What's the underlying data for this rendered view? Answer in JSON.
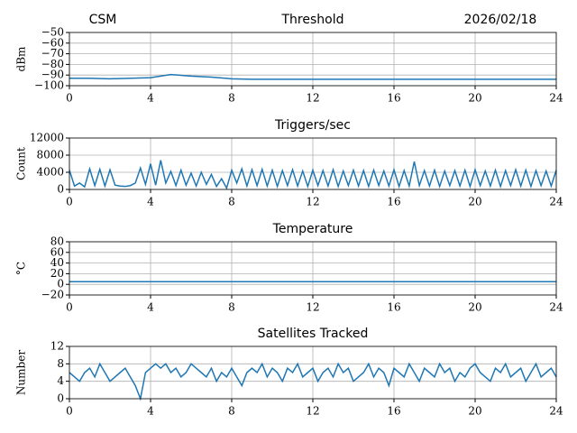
{
  "chart_data": [
    {
      "type": "line",
      "title": "Threshold",
      "left_note": "CSM",
      "right_note": "2026/02/18",
      "ylabel": "dBm",
      "color": "#1f77b4",
      "grid": true,
      "x": [
        0,
        1,
        2,
        3,
        4,
        5,
        6,
        7,
        8,
        9,
        10,
        11,
        12,
        13,
        14,
        15,
        16,
        17,
        18,
        19,
        20,
        21,
        22,
        23,
        24
      ],
      "values": [
        -93,
        -93,
        -93.5,
        -93,
        -92.5,
        -89.5,
        -91,
        -92,
        -93.5,
        -94,
        -94,
        -94,
        -94,
        -94,
        -94,
        -94,
        -94,
        -94,
        -94,
        -94,
        -94,
        -94,
        -94,
        -94,
        -94
      ],
      "xlim": [
        0,
        24
      ],
      "xticks": [
        0,
        4,
        8,
        12,
        16,
        20,
        24
      ],
      "ylim": [
        -100,
        -50
      ],
      "yticks": [
        {
          "value": -100,
          "label": "−100"
        },
        {
          "value": -90,
          "label": "−90"
        },
        {
          "value": -80,
          "label": "−80"
        },
        {
          "value": -70,
          "label": "−70"
        },
        {
          "value": -60,
          "label": "−60"
        },
        {
          "value": -50,
          "label": "−50"
        }
      ]
    },
    {
      "type": "line",
      "title": "Triggers/sec",
      "ylabel": "Count",
      "color": "#1f77b4",
      "grid": true,
      "x": [
        0,
        0.25,
        0.5,
        0.75,
        1,
        1.25,
        1.5,
        1.75,
        2,
        2.25,
        2.5,
        2.75,
        3,
        3.25,
        3.5,
        3.75,
        4,
        4.25,
        4.5,
        4.75,
        5,
        5.25,
        5.5,
        5.75,
        6,
        6.25,
        6.5,
        6.75,
        7,
        7.25,
        7.5,
        7.75,
        8,
        8.25,
        8.5,
        8.75,
        9,
        9.25,
        9.5,
        9.75,
        10,
        10.25,
        10.5,
        10.75,
        11,
        11.25,
        11.5,
        11.75,
        12,
        12.25,
        12.5,
        12.75,
        13,
        13.25,
        13.5,
        13.75,
        14,
        14.25,
        14.5,
        14.75,
        15,
        15.25,
        15.5,
        15.75,
        16,
        16.25,
        16.5,
        16.75,
        17,
        17.25,
        17.5,
        17.75,
        18,
        18.25,
        18.5,
        18.75,
        19,
        19.25,
        19.5,
        19.75,
        20,
        20.25,
        20.5,
        20.75,
        21,
        21.25,
        21.5,
        21.75,
        22,
        22.25,
        22.5,
        22.75,
        23,
        23.25,
        23.5,
        23.75,
        24
      ],
      "values": [
        4500,
        800,
        1500,
        600,
        4800,
        900,
        4700,
        800,
        4600,
        1000,
        800,
        700,
        900,
        1500,
        5000,
        1200,
        6000,
        1000,
        6800,
        1500,
        4200,
        900,
        4500,
        1000,
        3800,
        800,
        4000,
        1200,
        3500,
        700,
        2500,
        300,
        4500,
        1500,
        4800,
        800,
        4600,
        900,
        4700,
        800,
        4500,
        700,
        4400,
        900,
        4600,
        800,
        4300,
        700,
        4500,
        900,
        4400,
        800,
        4600,
        700,
        4300,
        900,
        4500,
        800,
        4400,
        700,
        4500,
        900,
        4300,
        800,
        4600,
        700,
        4400,
        800,
        6500,
        900,
        4400,
        800,
        4500,
        700,
        4300,
        900,
        4400,
        800,
        4500,
        700,
        4600,
        900,
        4300,
        800,
        4500,
        700,
        4400,
        900,
        4600,
        800,
        4500,
        700,
        4400,
        900,
        4300,
        800,
        4500
      ],
      "xlim": [
        0,
        24
      ],
      "xticks": [
        0,
        4,
        8,
        12,
        16,
        20,
        24
      ],
      "ylim": [
        0,
        12000
      ],
      "yticks": [
        0,
        4000,
        8000,
        12000
      ]
    },
    {
      "type": "line",
      "title": "Temperature",
      "ylabel": "°C",
      "color": "#1f77b4",
      "grid": true,
      "x": [
        0,
        24
      ],
      "values": [
        5,
        5
      ],
      "xlim": [
        0,
        24
      ],
      "xticks": [
        0,
        4,
        8,
        12,
        16,
        20,
        24
      ],
      "ylim": [
        -20,
        80
      ],
      "yticks": [
        {
          "value": -20,
          "label": "−20"
        },
        0,
        20,
        40,
        60,
        80
      ]
    },
    {
      "type": "line",
      "title": "Satellites Tracked",
      "ylabel": "Number",
      "color": "#1f77b4",
      "grid": true,
      "x": [
        0,
        0.25,
        0.5,
        0.75,
        1,
        1.25,
        1.5,
        1.75,
        2,
        2.25,
        2.5,
        2.75,
        3,
        3.25,
        3.5,
        3.75,
        4,
        4.25,
        4.5,
        4.75,
        5,
        5.25,
        5.5,
        5.75,
        6,
        6.25,
        6.5,
        6.75,
        7,
        7.25,
        7.5,
        7.75,
        8,
        8.25,
        8.5,
        8.75,
        9,
        9.25,
        9.5,
        9.75,
        10,
        10.25,
        10.5,
        10.75,
        11,
        11.25,
        11.5,
        11.75,
        12,
        12.25,
        12.5,
        12.75,
        13,
        13.25,
        13.5,
        13.75,
        14,
        14.25,
        14.5,
        14.75,
        15,
        15.25,
        15.5,
        15.75,
        16,
        16.25,
        16.5,
        16.75,
        17,
        17.25,
        17.5,
        17.75,
        18,
        18.25,
        18.5,
        18.75,
        19,
        19.25,
        19.5,
        19.75,
        20,
        20.25,
        20.5,
        20.75,
        21,
        21.25,
        21.5,
        21.75,
        22,
        22.25,
        22.5,
        22.75,
        23,
        23.25,
        23.5,
        23.75,
        24
      ],
      "values": [
        6,
        5,
        4,
        6,
        7,
        5,
        8,
        6,
        4,
        5,
        6,
        7,
        5,
        3,
        0,
        6,
        7,
        8,
        7,
        8,
        6,
        7,
        5,
        6,
        8,
        7,
        6,
        5,
        7,
        4,
        6,
        5,
        7,
        5,
        3,
        6,
        7,
        6,
        8,
        5,
        7,
        6,
        4,
        7,
        6,
        8,
        5,
        6,
        7,
        4,
        6,
        7,
        5,
        8,
        6,
        7,
        4,
        5,
        6,
        8,
        5,
        7,
        6,
        3,
        7,
        6,
        5,
        8,
        6,
        4,
        7,
        6,
        5,
        8,
        6,
        7,
        4,
        6,
        5,
        7,
        8,
        6,
        5,
        4,
        7,
        6,
        8,
        5,
        6,
        7,
        4,
        6,
        8,
        5,
        6,
        7,
        5
      ],
      "xlim": [
        0,
        24
      ],
      "xticks": [
        0,
        4,
        8,
        12,
        16,
        20,
        24
      ],
      "ylim": [
        0,
        12
      ],
      "yticks": [
        0,
        4,
        8,
        12
      ]
    }
  ]
}
